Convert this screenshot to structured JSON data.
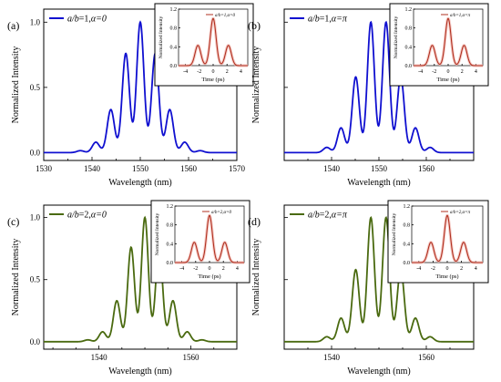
{
  "chart_data": [
    {
      "type": "line",
      "panel_label": "(a)",
      "legend": {
        "text_prefix": "a/b=1,",
        "text_alpha": "α=0",
        "placement": "top-left"
      },
      "xlabel": "Wavelength (nm)",
      "ylabel": "Normalized Intensity",
      "xlim": [
        1530,
        1570
      ],
      "ylim": [
        -0.06,
        1.1
      ],
      "xticks": [
        1530,
        1540,
        1550,
        1560,
        1570
      ],
      "yticks": [
        0.0,
        0.5,
        1.0
      ],
      "ytick_labels": [
        "0.0",
        "0.5",
        "1.0"
      ],
      "color": "#1010d0",
      "peaks": [
        {
          "x": 1537.6,
          "y": 0.015
        },
        {
          "x": 1540.8,
          "y": 0.08
        },
        {
          "x": 1543.9,
          "y": 0.33
        },
        {
          "x": 1547.0,
          "y": 0.76
        },
        {
          "x": 1550.0,
          "y": 1.0
        },
        {
          "x": 1553.1,
          "y": 0.76
        },
        {
          "x": 1556.1,
          "y": 0.33
        },
        {
          "x": 1559.2,
          "y": 0.08
        },
        {
          "x": 1562.4,
          "y": 0.015
        }
      ],
      "inset": {
        "legend": "a/b=1,α=0",
        "xlabel": "Time (ps)",
        "ylabel": "Normalized Intensity",
        "xlim": [
          -5,
          5
        ],
        "ylim": [
          0,
          1.2
        ],
        "xticks": [
          -4,
          -2,
          0,
          2,
          4
        ],
        "yticks": [
          0.0,
          0.4,
          0.8,
          1.2
        ],
        "ytick_labels": [
          "0.0",
          "0.4",
          "0.8",
          "1.2"
        ],
        "color": "#b03020",
        "peaks": [
          {
            "x": -2.2,
            "y": 0.43
          },
          {
            "x": 0,
            "y": 1.0
          },
          {
            "x": 2.2,
            "y": 0.43
          }
        ]
      }
    },
    {
      "type": "line",
      "panel_label": "(b)",
      "legend": {
        "text_prefix": "a/b=1,",
        "text_alpha": "α=π",
        "placement": "top-left"
      },
      "xlabel": "Wavelength (nm)",
      "ylabel": "Normalized Intensity",
      "xlim": [
        1530,
        1570
      ],
      "ylim": [
        -0.06,
        1.1
      ],
      "xticks": [
        1540,
        1550,
        1560
      ],
      "yticks": [],
      "ytick_labels": [],
      "color": "#1010d0",
      "peaks": [
        {
          "x": 1539.0,
          "y": 0.04
        },
        {
          "x": 1542.0,
          "y": 0.19
        },
        {
          "x": 1545.1,
          "y": 0.58
        },
        {
          "x": 1548.3,
          "y": 1.0
        },
        {
          "x": 1551.5,
          "y": 1.0
        },
        {
          "x": 1554.6,
          "y": 0.58
        },
        {
          "x": 1557.7,
          "y": 0.19
        },
        {
          "x": 1560.8,
          "y": 0.04
        }
      ],
      "inset": {
        "legend": "a/b=1,α=π",
        "xlabel": "Time (ps)",
        "ylabel": "Normalized Intensity",
        "xlim": [
          -5,
          5
        ],
        "ylim": [
          0,
          1.2
        ],
        "xticks": [
          -4,
          -2,
          0,
          2,
          4
        ],
        "yticks": [
          0.0,
          0.4,
          0.8,
          1.2
        ],
        "ytick_labels": [
          "0.0",
          "0.4",
          "0.8",
          "1.2"
        ],
        "color": "#b03020",
        "peaks": [
          {
            "x": -2.3,
            "y": 0.43
          },
          {
            "x": 0,
            "y": 1.0
          },
          {
            "x": 2.3,
            "y": 0.43
          }
        ]
      }
    },
    {
      "type": "line",
      "panel_label": "(c)",
      "legend": {
        "text_prefix": "a/b=2,",
        "text_alpha": "α=0",
        "placement": "top-left"
      },
      "xlabel": "Wavelength (nm)",
      "ylabel": "Normalized Intensity",
      "xlim": [
        1528,
        1570
      ],
      "ylim": [
        -0.06,
        1.1
      ],
      "xticks": [
        1540,
        1560
      ],
      "yticks": [
        0.0,
        0.5,
        1.0
      ],
      "ytick_labels": [
        "0.0",
        "0.5",
        "1.0"
      ],
      "color": "#4a6a10",
      "peaks": [
        {
          "x": 1537.6,
          "y": 0.015
        },
        {
          "x": 1540.8,
          "y": 0.08
        },
        {
          "x": 1543.9,
          "y": 0.33
        },
        {
          "x": 1547.0,
          "y": 0.76
        },
        {
          "x": 1550.0,
          "y": 1.0
        },
        {
          "x": 1553.1,
          "y": 0.76
        },
        {
          "x": 1556.1,
          "y": 0.33
        },
        {
          "x": 1559.2,
          "y": 0.08
        },
        {
          "x": 1562.4,
          "y": 0.015
        }
      ],
      "inset": {
        "legend": "a/b=2,α=0",
        "xlabel": "Time (ps)",
        "ylabel": "Normalized Intensity",
        "xlim": [
          -5,
          5
        ],
        "ylim": [
          0,
          1.2
        ],
        "xticks": [
          -4,
          -2,
          0,
          2,
          4
        ],
        "yticks": [
          0.0,
          0.4,
          0.8,
          1.2
        ],
        "ytick_labels": [
          "0.0",
          "0.4",
          "0.8",
          "1.2"
        ],
        "color": "#b03020",
        "peaks": [
          {
            "x": -2.2,
            "y": 0.43
          },
          {
            "x": 0,
            "y": 1.0
          },
          {
            "x": 2.2,
            "y": 0.43
          }
        ]
      }
    },
    {
      "type": "line",
      "panel_label": "(d)",
      "legend": {
        "text_prefix": "a/b=2,",
        "text_alpha": "α=π",
        "placement": "top-left"
      },
      "xlabel": "Wavelength (nm)",
      "ylabel": "Normalized Intensity",
      "xlim": [
        1530,
        1570
      ],
      "ylim": [
        -0.06,
        1.1
      ],
      "xticks": [
        1540,
        1560
      ],
      "yticks": [],
      "ytick_labels": [],
      "color": "#4a6a10",
      "peaks": [
        {
          "x": 1539.0,
          "y": 0.04
        },
        {
          "x": 1542.0,
          "y": 0.19
        },
        {
          "x": 1545.1,
          "y": 0.58
        },
        {
          "x": 1548.3,
          "y": 1.0
        },
        {
          "x": 1551.5,
          "y": 1.0
        },
        {
          "x": 1554.6,
          "y": 0.58
        },
        {
          "x": 1557.7,
          "y": 0.19
        },
        {
          "x": 1560.8,
          "y": 0.04
        }
      ],
      "inset": {
        "legend": "a/b=2,α=π",
        "xlabel": "Time (ps)",
        "ylabel": "Normalized Intensity",
        "xlim": [
          -5,
          5
        ],
        "ylim": [
          0,
          1.2
        ],
        "xticks": [
          -4,
          -2,
          0,
          2,
          4
        ],
        "yticks": [
          0.0,
          0.4,
          0.8,
          1.2
        ],
        "ytick_labels": [
          "0.0",
          "0.4",
          "0.8",
          "1.2"
        ],
        "color": "#b03020",
        "peaks": [
          {
            "x": -2.3,
            "y": 0.43
          },
          {
            "x": 0,
            "y": 1.0
          },
          {
            "x": 2.3,
            "y": 0.43
          }
        ]
      }
    }
  ]
}
